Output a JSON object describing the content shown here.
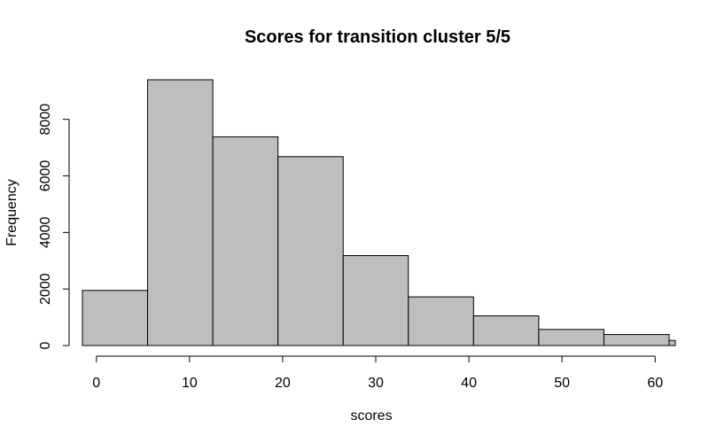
{
  "chart_data": {
    "type": "bar",
    "title": "Scores for transition cluster 5/5",
    "xlabel": "scores",
    "ylabel": "Frequency",
    "bins": [
      {
        "start": -1.5,
        "end": 5.5,
        "count": 1950
      },
      {
        "start": 5.5,
        "end": 12.5,
        "count": 9400
      },
      {
        "start": 12.5,
        "end": 19.5,
        "count": 7380
      },
      {
        "start": 19.5,
        "end": 26.5,
        "count": 6680
      },
      {
        "start": 26.5,
        "end": 33.5,
        "count": 3180
      },
      {
        "start": 33.5,
        "end": 40.5,
        "count": 1720
      },
      {
        "start": 40.5,
        "end": 47.5,
        "count": 1050
      },
      {
        "start": 47.5,
        "end": 54.5,
        "count": 570
      },
      {
        "start": 54.5,
        "end": 61.5,
        "count": 390
      },
      {
        "start": 61.5,
        "end": 68.5,
        "count": 180
      }
    ],
    "xticks": [
      0,
      10,
      20,
      30,
      40,
      50,
      60
    ],
    "yticks": [
      0,
      2000,
      4000,
      6000,
      8000
    ],
    "xlim": [
      -1.5,
      61.5
    ],
    "ylim": [
      0,
      9400
    ],
    "bar_color": "#bebebe",
    "grid": false
  }
}
